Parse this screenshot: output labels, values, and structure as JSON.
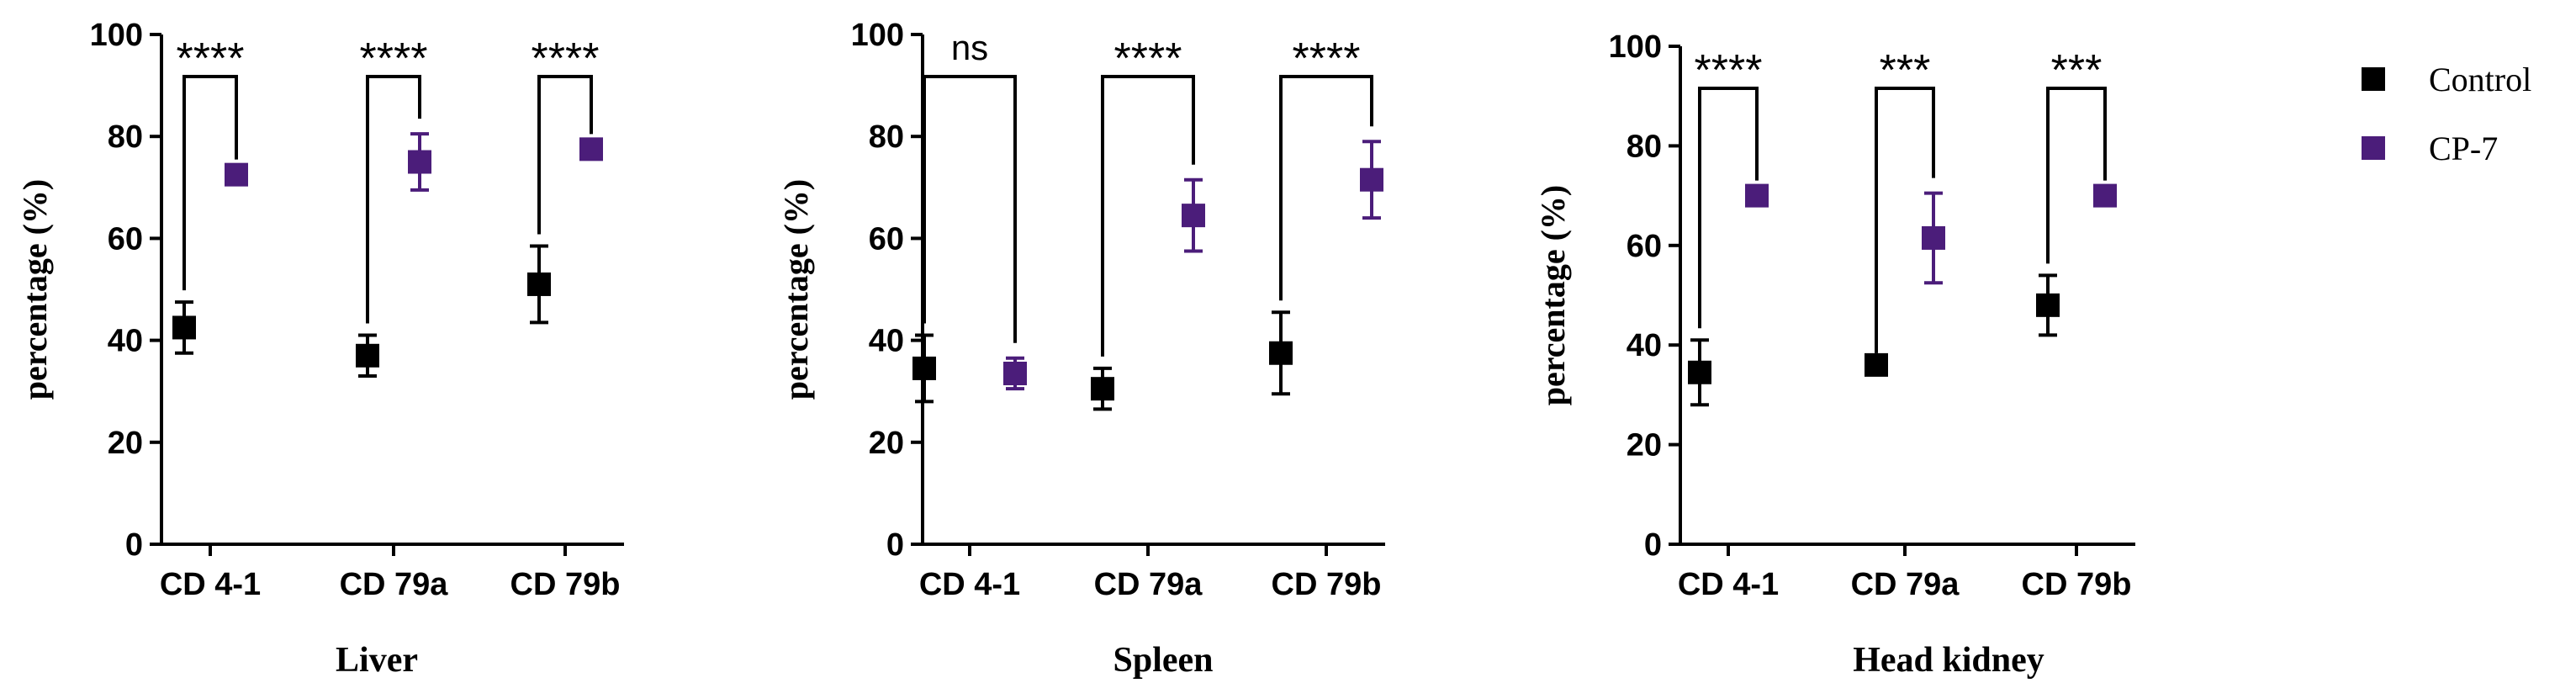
{
  "chart_data": [
    {
      "type": "scatter",
      "xlabel": "Liver",
      "ylabel": "percentage (%)",
      "ylim": [
        0,
        100
      ],
      "yticks": [
        0,
        20,
        40,
        60,
        80,
        100
      ],
      "categories": [
        "CD 4-1",
        "CD 79a",
        "CD 79b"
      ],
      "series": [
        {
          "name": "Control",
          "values": [
            42.5,
            37,
            51
          ],
          "errors": [
            5,
            4,
            7.5
          ]
        },
        {
          "name": "CP-7",
          "values": [
            72.5,
            75,
            77.5
          ],
          "errors": [
            0,
            5.5,
            0
          ]
        }
      ],
      "significance": [
        "****",
        "****",
        "****"
      ]
    },
    {
      "type": "scatter",
      "xlabel": "Spleen",
      "ylabel": "percentage (%)",
      "ylim": [
        0,
        100
      ],
      "yticks": [
        0,
        20,
        40,
        60,
        80,
        100
      ],
      "categories": [
        "CD 4-1",
        "CD 79a",
        "CD 79b"
      ],
      "series": [
        {
          "name": "Control",
          "values": [
            34.5,
            30.5,
            37.5
          ],
          "errors": [
            6.5,
            4,
            8
          ]
        },
        {
          "name": "CP-7",
          "values": [
            33.5,
            64.5,
            71.5
          ],
          "errors": [
            3,
            7,
            7.5
          ]
        }
      ],
      "significance": [
        "ns",
        "****",
        "****"
      ]
    },
    {
      "type": "scatter",
      "xlabel": "Head kidney",
      "ylabel": "percentage (%)",
      "ylim": [
        0,
        100
      ],
      "yticks": [
        0,
        20,
        40,
        60,
        80,
        100
      ],
      "categories": [
        "CD 4-1",
        "CD 79a",
        "CD 79b"
      ],
      "series": [
        {
          "name": "Control",
          "values": [
            34.5,
            36,
            48
          ],
          "errors": [
            6.5,
            0,
            6
          ]
        },
        {
          "name": "CP-7",
          "values": [
            70,
            61.5,
            70
          ],
          "errors": [
            0,
            9,
            0
          ]
        }
      ],
      "significance": [
        "****",
        "***",
        "***"
      ]
    }
  ],
  "legend": [
    {
      "label": "Control",
      "color": "#000000"
    },
    {
      "label": "CP-7",
      "color": "#4b1d7a"
    }
  ],
  "colors": {
    "control": "#000000",
    "cp7": "#4b1d7a"
  }
}
